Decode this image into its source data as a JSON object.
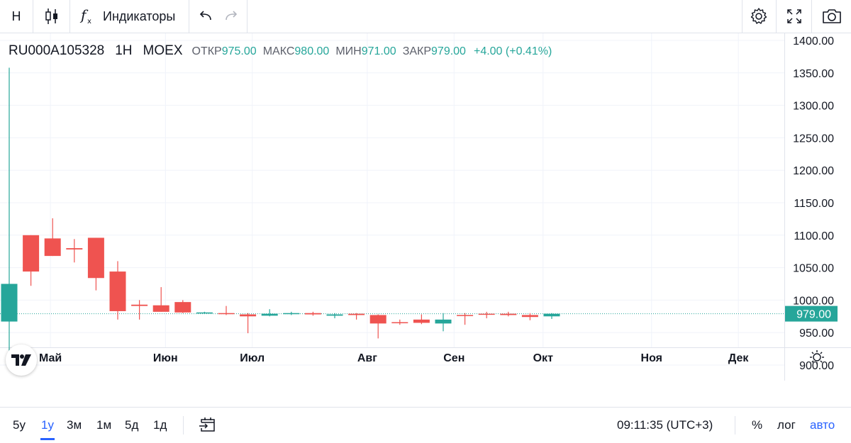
{
  "toolbar": {
    "interval": "Н",
    "indicators_label": "Индикаторы"
  },
  "legend": {
    "symbol": "RU000A105328",
    "interval": "1Н",
    "exchange": "MOEX",
    "open_label": "ОТКР",
    "open_value": "975.00",
    "high_label": "МАКС",
    "high_value": "980.00",
    "low_label": "МИН",
    "low_value": "971.00",
    "close_label": "ЗАКР",
    "close_value": "979.00",
    "change": "+4.00 (+0.41%)"
  },
  "colors": {
    "up": "#26a69a",
    "down": "#ef5350",
    "accent": "#2962ff"
  },
  "bottom": {
    "ranges": [
      "5у",
      "1у",
      "3м",
      "1м",
      "5д",
      "1д"
    ],
    "active_range": "1у",
    "time": "09:11:35 (UTC+3)",
    "percent": "%",
    "log": "лог",
    "auto": "авто"
  },
  "chart_data": {
    "type": "candlestick",
    "ylim": [
      880,
      1410
    ],
    "y_ticks": [
      "1400.00",
      "1350.00",
      "1300.00",
      "1250.00",
      "1200.00",
      "1150.00",
      "1100.00",
      "1050.00",
      "1000.00",
      "950.00",
      "900.00"
    ],
    "y_tick_values": [
      1400,
      1350,
      1300,
      1250,
      1200,
      1150,
      1100,
      1050,
      1000,
      950,
      900
    ],
    "x_labels": [
      "Май",
      "Июн",
      "Июл",
      "Авг",
      "Сен",
      "Окт",
      "Ноя",
      "Дек"
    ],
    "x_label_weeks": [
      1.9,
      7.2,
      11.2,
      16.5,
      20.5,
      24.6,
      29.6,
      33.6
    ],
    "last_price": 979,
    "last_price_label": "979.00",
    "candles": [
      {
        "w": 0,
        "o": 967,
        "h": 1358,
        "l": 920,
        "c": 1025
      },
      {
        "w": 1,
        "o": 1100,
        "h": 1100,
        "l": 1022,
        "c": 1044
      },
      {
        "w": 2,
        "o": 1095,
        "h": 1126,
        "l": 1068,
        "c": 1068
      },
      {
        "w": 3,
        "o": 1080,
        "h": 1094,
        "l": 1058,
        "c": 1078
      },
      {
        "w": 4,
        "o": 1096,
        "h": 1096,
        "l": 1015,
        "c": 1034
      },
      {
        "w": 5,
        "o": 1044,
        "h": 1060,
        "l": 970,
        "c": 983
      },
      {
        "w": 6,
        "o": 993,
        "h": 1000,
        "l": 970,
        "c": 991
      },
      {
        "w": 7,
        "o": 992,
        "h": 1020,
        "l": 982,
        "c": 982
      },
      {
        "w": 8,
        "o": 997,
        "h": 1000,
        "l": 980,
        "c": 981
      },
      {
        "w": 9,
        "o": 980,
        "h": 982,
        "l": 979,
        "c": 981
      },
      {
        "w": 10,
        "o": 980,
        "h": 991,
        "l": 977,
        "c": 979
      },
      {
        "w": 11,
        "o": 978,
        "h": 980,
        "l": 949,
        "c": 975
      },
      {
        "w": 12,
        "o": 976,
        "h": 986,
        "l": 975,
        "c": 979
      },
      {
        "w": 13,
        "o": 979,
        "h": 982,
        "l": 977,
        "c": 980
      },
      {
        "w": 14,
        "o": 980,
        "h": 982,
        "l": 976,
        "c": 978
      },
      {
        "w": 15,
        "o": 976,
        "h": 980,
        "l": 972,
        "c": 978
      },
      {
        "w": 16,
        "o": 979,
        "h": 980,
        "l": 970,
        "c": 977
      },
      {
        "w": 17,
        "o": 977,
        "h": 978,
        "l": 941,
        "c": 964
      },
      {
        "w": 18,
        "o": 966,
        "h": 970,
        "l": 962,
        "c": 965
      },
      {
        "w": 19,
        "o": 970,
        "h": 978,
        "l": 963,
        "c": 965
      },
      {
        "w": 20,
        "o": 964,
        "h": 980,
        "l": 952,
        "c": 970
      },
      {
        "w": 21,
        "o": 977,
        "h": 980,
        "l": 962,
        "c": 976
      },
      {
        "w": 22,
        "o": 979,
        "h": 982,
        "l": 972,
        "c": 978
      },
      {
        "w": 23,
        "o": 979,
        "h": 982,
        "l": 975,
        "c": 977
      },
      {
        "w": 24,
        "o": 977,
        "h": 980,
        "l": 969,
        "c": 974
      },
      {
        "w": 25,
        "o": 975,
        "h": 980,
        "l": 971,
        "c": 979
      }
    ]
  }
}
